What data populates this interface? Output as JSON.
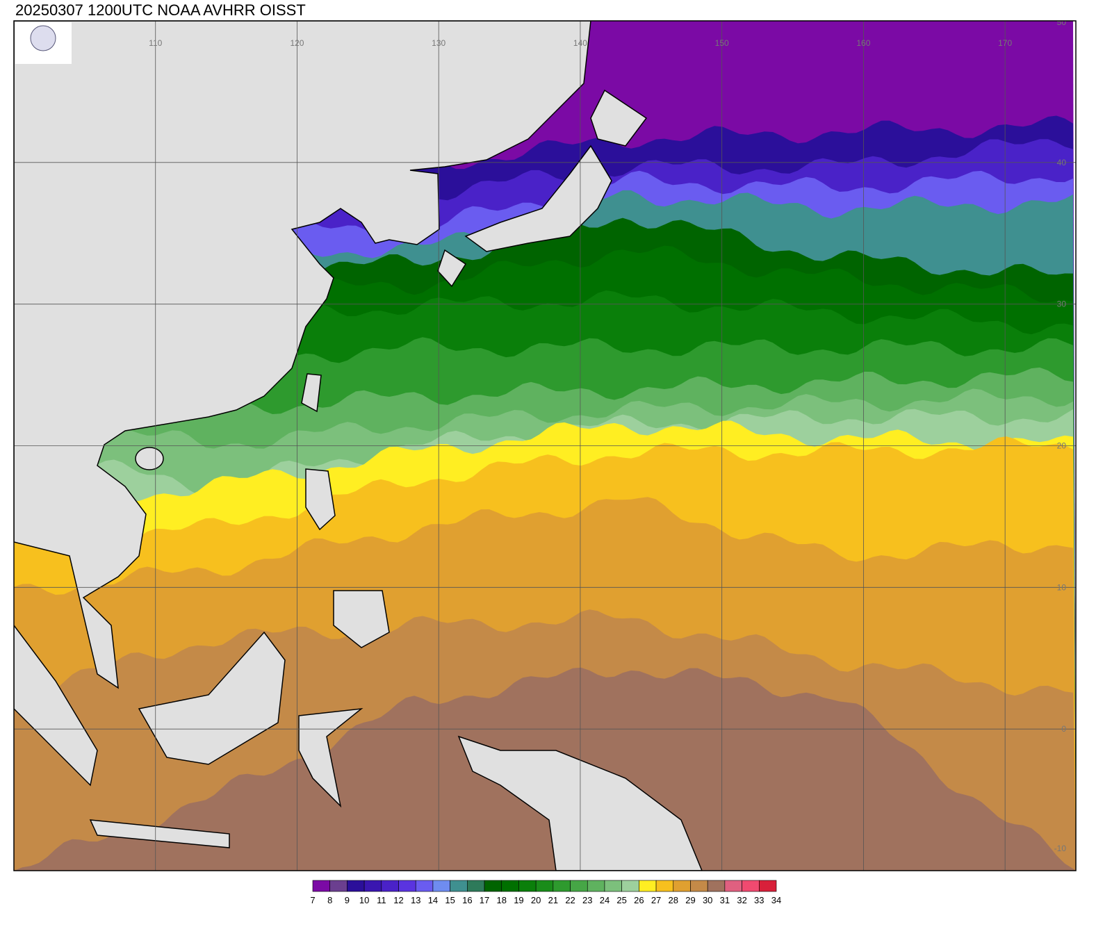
{
  "header": {
    "title": "20250307 1200UTC NOAA AVHRR OISST"
  },
  "map": {
    "lon_range": [
      100,
      175
    ],
    "lat_range": [
      -10,
      50
    ],
    "lon_ticks": [
      110,
      120,
      130,
      140,
      150,
      160,
      170
    ],
    "lat_ticks": [
      50,
      40,
      30,
      20,
      10,
      0,
      -10
    ]
  },
  "colorbar": {
    "ticks": [
      7,
      8,
      9,
      10,
      11,
      12,
      13,
      14,
      15,
      16,
      17,
      18,
      19,
      20,
      21,
      22,
      23,
      24,
      25,
      26,
      27,
      28,
      29,
      30,
      31,
      32,
      33,
      34
    ],
    "colors": [
      "#7b0aa5",
      "#6b3f8f",
      "#2b0f9a",
      "#3a16b0",
      "#4a22c8",
      "#5a34e0",
      "#6a5cf0",
      "#6f8cf0",
      "#3f9090",
      "#2e7a5a",
      "#006400",
      "#007000",
      "#0a7f0a",
      "#1a8c1a",
      "#2e9a2e",
      "#46a646",
      "#5fb25f",
      "#7cc07c",
      "#9dd09d",
      "#ffee22",
      "#f7c01e",
      "#e0a030",
      "#c48a48",
      "#a0725e",
      "#e06080",
      "#f04a70",
      "#d8203a"
    ]
  }
}
